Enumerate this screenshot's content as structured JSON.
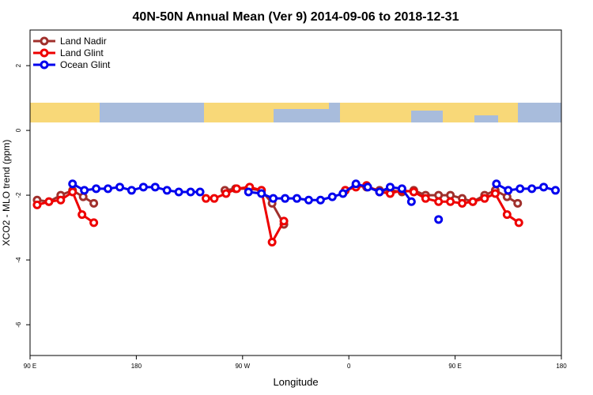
{
  "chart_data": {
    "type": "line",
    "title": "40N-50N Annual Mean (Ver 9)   2014-09-06 to 2018-12-31",
    "x_label": "Longitude",
    "y_label": "XCO2 - MLO trend (ppm)",
    "xlim": [
      90,
      540
    ],
    "xticks": [
      {
        "value": 90,
        "label": "90 E"
      },
      180,
      {
        "value": 270,
        "label": "90 W"
      },
      {
        "value": 360,
        "label": "0"
      },
      {
        "value": 450,
        "label": "90 E"
      },
      {
        "value": 540,
        "label": "180"
      }
    ],
    "ylim": [
      -6.95,
      3.1
    ],
    "yticks": [
      2,
      0,
      -2,
      -4,
      -6
    ],
    "legend": "top-left",
    "series": [
      {
        "name": "Land Nadir",
        "color": "#a0302c",
        "x": [
          96,
          106,
          116,
          126,
          135,
          144,
          null,
          255,
          264,
          275,
          286,
          295,
          305,
          null,
          357,
          366,
          375,
          386,
          395,
          405,
          415,
          425,
          436,
          446,
          456,
          465,
          475,
          484,
          494,
          503
        ],
        "values": [
          -2.15,
          -2.2,
          -2.0,
          -1.85,
          -2.05,
          -2.25,
          null,
          -1.85,
          -1.8,
          -1.8,
          -1.85,
          -2.25,
          -2.9,
          null,
          -1.85,
          -1.7,
          -1.75,
          -1.85,
          -1.85,
          -1.9,
          -1.85,
          -2.0,
          -2.0,
          -2.0,
          -2.1,
          -2.2,
          -2.0,
          -1.85,
          -2.05,
          -2.25
        ]
      },
      {
        "name": "Land Glint",
        "color": "#ee0000",
        "x": [
          96,
          106,
          116,
          126,
          134,
          144,
          null,
          239,
          246,
          256,
          265,
          276,
          286,
          295,
          305,
          null,
          357,
          366,
          375,
          386,
          395,
          405,
          415,
          425,
          436,
          446,
          456,
          465,
          475,
          484,
          494,
          504
        ],
        "values": [
          -2.3,
          -2.2,
          -2.15,
          -1.9,
          -2.6,
          -2.85,
          null,
          -2.1,
          -2.1,
          -1.95,
          -1.8,
          -1.75,
          -1.85,
          -3.45,
          -2.8,
          null,
          -1.85,
          -1.75,
          -1.7,
          -1.9,
          -1.95,
          -1.85,
          -1.9,
          -2.1,
          -2.2,
          -2.2,
          -2.25,
          -2.2,
          -2.1,
          -1.95,
          -2.6,
          -2.85
        ]
      },
      {
        "name": "Ocean Glint",
        "color": "#0000ee",
        "x": [
          126,
          136,
          146,
          156,
          166,
          176,
          186,
          196,
          206,
          216,
          226,
          234,
          null,
          275,
          286,
          296,
          306,
          316,
          326,
          336,
          346,
          355,
          366,
          376,
          386,
          395,
          405,
          413,
          null,
          436,
          null,
          485,
          495,
          505,
          515,
          525,
          535
        ],
        "values": [
          -1.65,
          -1.85,
          -1.8,
          -1.8,
          -1.75,
          -1.85,
          -1.75,
          -1.75,
          -1.85,
          -1.9,
          -1.9,
          -1.9,
          null,
          -1.9,
          -1.95,
          -2.1,
          -2.1,
          -2.1,
          -2.15,
          -2.15,
          -2.05,
          -1.95,
          -1.65,
          -1.75,
          -1.9,
          -1.75,
          -1.8,
          -2.2,
          null,
          -2.75,
          null,
          -1.65,
          -1.85,
          -1.8,
          -1.8,
          -1.75,
          -1.85
        ]
      }
    ]
  }
}
